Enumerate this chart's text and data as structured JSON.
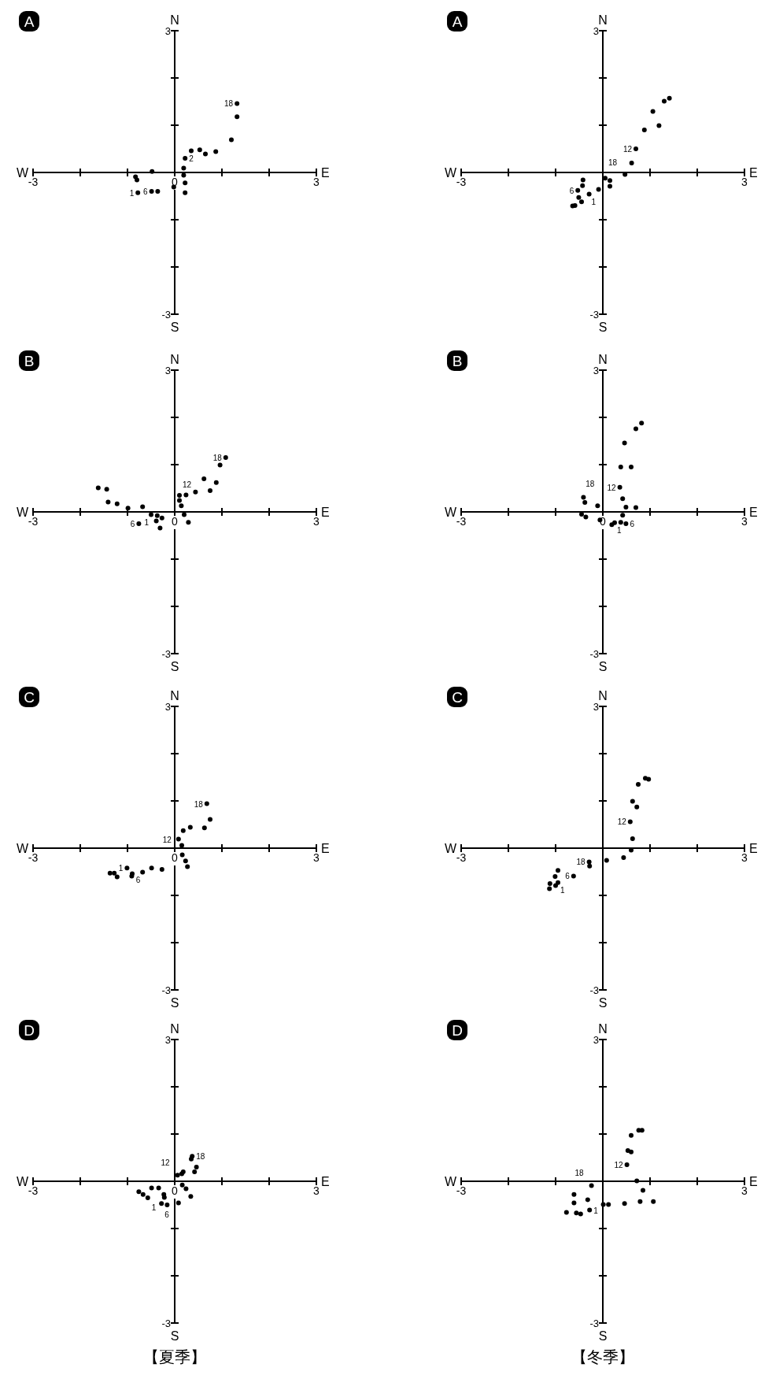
{
  "chart_data": [
    {
      "type": "scatter",
      "title": "A",
      "xlim": [
        -3,
        3
      ],
      "ylim": [
        -3,
        3
      ],
      "color": "#000000",
      "marker": "circle",
      "xticks": [
        {
          "value": -3,
          "label": "-3"
        },
        {
          "value": -2,
          "label": null
        },
        {
          "value": -1,
          "label": null
        },
        {
          "value": 0,
          "label": "0"
        },
        {
          "value": 1,
          "label": null
        },
        {
          "value": 2,
          "label": null
        },
        {
          "value": 3,
          "label": "3"
        }
      ],
      "yticks": [
        {
          "value": -3,
          "label": "-3"
        },
        {
          "value": -2,
          "label": null
        },
        {
          "value": -1,
          "label": null
        },
        {
          "value": 1,
          "label": null
        },
        {
          "value": 2,
          "label": null
        },
        {
          "value": 3,
          "label": "3"
        }
      ],
      "x": [
        1.32,
        1.32,
        1.2,
        0.87,
        0.65,
        0.53,
        0.35,
        0.22,
        0.19,
        0.19,
        0.22,
        0.22,
        -0.02,
        -0.36,
        -0.49,
        -0.78,
        -0.8,
        -0.83,
        -0.48
      ],
      "values": [
        1.46,
        1.18,
        0.69,
        0.44,
        0.39,
        0.48,
        0.46,
        0.3,
        0.09,
        -0.06,
        -0.22,
        -0.43,
        -0.31,
        -0.4,
        -0.4,
        -0.43,
        -0.16,
        -0.09,
        0.02
      ],
      "annotations": [
        "N",
        "S",
        "W",
        "E",
        {
          "text": "18",
          "x": 1.32,
          "y": 1.46
        },
        {
          "text": "2",
          "x": 0.22,
          "y": 0.3
        },
        {
          "text": "6",
          "x": -0.49,
          "y": -0.4
        },
        {
          "text": "1",
          "x": -0.78,
          "y": -0.43
        }
      ]
    },
    {
      "type": "scatter",
      "title": "A",
      "xlim": [
        -3,
        3
      ],
      "ylim": [
        -3,
        3
      ],
      "color": "#000000",
      "marker": "circle",
      "xticks": [
        {
          "value": -3,
          "label": "-3"
        },
        {
          "value": -2,
          "label": null
        },
        {
          "value": -1,
          "label": null
        },
        {
          "value": 1,
          "label": null
        },
        {
          "value": 2,
          "label": null
        },
        {
          "value": 3,
          "label": "3"
        }
      ],
      "yticks": [
        {
          "value": -3,
          "label": "-3"
        },
        {
          "value": -2,
          "label": null
        },
        {
          "value": -1,
          "label": null
        },
        {
          "value": 1,
          "label": null
        },
        {
          "value": 2,
          "label": null
        },
        {
          "value": 3,
          "label": "3"
        }
      ],
      "x": [
        1.41,
        1.3,
        1.06,
        1.19,
        0.88,
        0.7,
        0.61,
        0.47,
        0.15,
        0.15,
        0.05,
        -0.09,
        -0.42,
        -0.43,
        -0.29,
        -0.53,
        -0.51,
        -0.45,
        -0.59,
        -0.64
      ],
      "values": [
        1.57,
        1.51,
        1.29,
        0.99,
        0.9,
        0.5,
        0.2,
        -0.04,
        -0.17,
        -0.29,
        -0.12,
        -0.36,
        -0.16,
        -0.28,
        -0.46,
        -0.38,
        -0.53,
        -0.62,
        -0.7,
        -0.71
      ],
      "annotations": [
        "N",
        "S",
        "W",
        "E",
        {
          "text": "12",
          "x": 0.7,
          "y": 0.5
        },
        {
          "text": "18",
          "x": 0.05,
          "y": -0.12
        },
        {
          "text": "6",
          "x": -0.53,
          "y": -0.38
        },
        {
          "text": "1",
          "x": -0.29,
          "y": -0.46
        }
      ]
    },
    {
      "type": "scatter",
      "title": "B",
      "xlim": [
        -3,
        3
      ],
      "ylim": [
        -3,
        3
      ],
      "color": "#000000",
      "marker": "circle",
      "xticks": [
        {
          "value": -3,
          "label": "-3"
        },
        {
          "value": -2,
          "label": null
        },
        {
          "value": -1,
          "label": null
        },
        {
          "value": 0,
          "label": "0"
        },
        {
          "value": 1,
          "label": null
        },
        {
          "value": 2,
          "label": null
        },
        {
          "value": 3,
          "label": "3"
        }
      ],
      "yticks": [
        {
          "value": -3,
          "label": "-3"
        },
        {
          "value": -2,
          "label": null
        },
        {
          "value": -1,
          "label": null
        },
        {
          "value": 1,
          "label": null
        },
        {
          "value": 2,
          "label": null
        },
        {
          "value": 3,
          "label": "3"
        }
      ],
      "x": [
        1.08,
        0.96,
        0.62,
        0.88,
        0.75,
        0.44,
        0.24,
        0.1,
        0.1,
        0.14,
        0.2,
        0.29,
        -0.31,
        -0.27,
        -0.37,
        -0.39,
        -0.5,
        -0.76,
        -0.68,
        -0.99,
        -1.22,
        -1.41,
        -1.44,
        -1.62
      ],
      "values": [
        1.15,
        0.99,
        0.7,
        0.62,
        0.45,
        0.42,
        0.36,
        0.35,
        0.24,
        0.13,
        -0.06,
        -0.22,
        -0.34,
        -0.13,
        -0.08,
        -0.19,
        -0.06,
        -0.25,
        0.11,
        0.08,
        0.17,
        0.21,
        0.48,
        0.51
      ],
      "annotations": [
        "N",
        "S",
        "W",
        "E",
        {
          "text": "18",
          "x": 1.08,
          "y": 1.15
        },
        {
          "text": "12",
          "x": 0.1,
          "y": 0.35
        },
        {
          "text": "1",
          "x": -0.5,
          "y": -0.06
        },
        {
          "text": "6",
          "x": -0.76,
          "y": -0.25
        }
      ]
    },
    {
      "type": "scatter",
      "title": "B",
      "xlim": [
        -3,
        3
      ],
      "ylim": [
        -3,
        3
      ],
      "color": "#000000",
      "marker": "circle",
      "xticks": [
        {
          "value": -3,
          "label": "-3"
        },
        {
          "value": -2,
          "label": null
        },
        {
          "value": -1,
          "label": null
        },
        {
          "value": 0,
          "label": "0"
        },
        {
          "value": 1,
          "label": null
        },
        {
          "value": 2,
          "label": null
        },
        {
          "value": 3,
          "label": "3"
        }
      ],
      "yticks": [
        {
          "value": -3,
          "label": "-3"
        },
        {
          "value": -2,
          "label": null
        },
        {
          "value": -1,
          "label": null
        },
        {
          "value": 1,
          "label": null
        },
        {
          "value": 2,
          "label": null
        },
        {
          "value": 3,
          "label": "3"
        }
      ],
      "x": [
        0.82,
        0.7,
        0.46,
        0.38,
        0.6,
        0.36,
        0.42,
        0.49,
        0.7,
        0.42,
        0.49,
        0.38,
        0.25,
        0.19,
        -0.06,
        -0.11,
        -0.36,
        -0.45,
        -0.38,
        -0.41
      ],
      "values": [
        1.88,
        1.76,
        1.46,
        0.95,
        0.95,
        0.52,
        0.28,
        0.1,
        0.09,
        -0.07,
        -0.25,
        -0.22,
        -0.23,
        -0.27,
        -0.17,
        0.13,
        -0.11,
        -0.05,
        0.2,
        0.31
      ],
      "annotations": [
        "N",
        "S",
        "W",
        "E",
        {
          "text": "12",
          "x": 0.36,
          "y": 0.52
        },
        {
          "text": "6",
          "x": 0.49,
          "y": -0.25
        },
        {
          "text": "1",
          "x": 0.25,
          "y": -0.23
        },
        {
          "text": "18",
          "x": -0.11,
          "y": 0.13
        }
      ]
    },
    {
      "type": "scatter",
      "title": "C",
      "xlim": [
        -3,
        3
      ],
      "ylim": [
        -3,
        3
      ],
      "color": "#000000",
      "marker": "circle",
      "xticks": [
        {
          "value": -3,
          "label": "-3"
        },
        {
          "value": -2,
          "label": null
        },
        {
          "value": -1,
          "label": null
        },
        {
          "value": 0,
          "label": "0"
        },
        {
          "value": 1,
          "label": null
        },
        {
          "value": 2,
          "label": null
        },
        {
          "value": 3,
          "label": "3"
        }
      ],
      "yticks": [
        {
          "value": -3,
          "label": "-3"
        },
        {
          "value": -2,
          "label": null
        },
        {
          "value": -1,
          "label": null
        },
        {
          "value": 1,
          "label": null
        },
        {
          "value": 2,
          "label": null
        },
        {
          "value": 3,
          "label": "3"
        }
      ],
      "x": [
        0.68,
        0.75,
        0.63,
        0.33,
        0.18,
        0.08,
        0.15,
        0.16,
        0.23,
        0.27,
        -0.27,
        -0.49,
        -0.68,
        -0.91,
        -0.9,
        -1.01,
        -1.22,
        -1.28,
        -1.37
      ],
      "values": [
        0.94,
        0.61,
        0.43,
        0.44,
        0.37,
        0.19,
        0.06,
        -0.14,
        -0.27,
        -0.39,
        -0.45,
        -0.42,
        -0.51,
        -0.59,
        -0.54,
        -0.42,
        -0.61,
        -0.53,
        -0.53
      ],
      "annotations": [
        "N",
        "S",
        "W",
        "E",
        {
          "text": "18",
          "x": 0.68,
          "y": 0.94
        },
        {
          "text": "12",
          "x": 0.08,
          "y": 0.19
        },
        {
          "text": "6",
          "x": -0.68,
          "y": -0.51
        },
        {
          "text": "1",
          "x": -1.01,
          "y": -0.42
        }
      ]
    },
    {
      "type": "scatter",
      "title": "C",
      "xlim": [
        -3,
        3
      ],
      "ylim": [
        -3,
        3
      ],
      "color": "#000000",
      "marker": "circle",
      "xticks": [
        {
          "value": -3,
          "label": "-3"
        },
        {
          "value": -2,
          "label": null
        },
        {
          "value": -1,
          "label": null
        },
        {
          "value": 1,
          "label": null
        },
        {
          "value": 2,
          "label": null
        },
        {
          "value": 3,
          "label": "3"
        }
      ],
      "yticks": [
        {
          "value": -3,
          "label": "-3"
        },
        {
          "value": -2,
          "label": null
        },
        {
          "value": -1,
          "label": null
        },
        {
          "value": 1,
          "label": null
        },
        {
          "value": 2,
          "label": null
        },
        {
          "value": 3,
          "label": "3"
        }
      ],
      "x": [
        0.97,
        0.9,
        0.75,
        0.63,
        0.72,
        0.58,
        0.63,
        0.6,
        0.44,
        0.08,
        -0.29,
        -0.28,
        -0.62,
        -0.95,
        -1.01,
        -0.95,
        -1.0,
        -1.12,
        -1.13
      ],
      "values": [
        1.46,
        1.48,
        1.35,
        0.99,
        0.87,
        0.56,
        0.2,
        -0.04,
        -0.2,
        -0.26,
        -0.29,
        -0.38,
        -0.59,
        -0.47,
        -0.6,
        -0.73,
        -0.79,
        -0.75,
        -0.86
      ],
      "annotations": [
        "N",
        "S",
        "W",
        "E",
        {
          "text": "12",
          "x": 0.58,
          "y": 0.56
        },
        {
          "text": "18",
          "x": -0.29,
          "y": -0.29
        },
        {
          "text": "6",
          "x": -0.62,
          "y": -0.59
        },
        {
          "text": "1",
          "x": -0.95,
          "y": -0.73
        }
      ]
    },
    {
      "type": "scatter",
      "title": "D",
      "xlim": [
        -3,
        3
      ],
      "ylim": [
        -3,
        3
      ],
      "color": "#000000",
      "marker": "circle",
      "xticks": [
        {
          "value": -3,
          "label": "-3"
        },
        {
          "value": -2,
          "label": null
        },
        {
          "value": -1,
          "label": null
        },
        {
          "value": 0,
          "label": "0"
        },
        {
          "value": 1,
          "label": null
        },
        {
          "value": 2,
          "label": null
        },
        {
          "value": 3,
          "label": "3"
        }
      ],
      "yticks": [
        {
          "value": -3,
          "label": "-3"
        },
        {
          "value": -2,
          "label": null
        },
        {
          "value": -1,
          "label": null
        },
        {
          "value": 1,
          "label": null
        },
        {
          "value": 2,
          "label": null
        },
        {
          "value": 3,
          "label": "3"
        }
      ],
      "x": [
        0.37,
        0.35,
        0.46,
        0.42,
        0.18,
        0.15,
        0.06,
        0.16,
        0.24,
        0.34,
        0.08,
        -0.16,
        -0.28,
        -0.22,
        -0.23,
        -0.34,
        -0.49,
        -0.57,
        -0.67,
        -0.76
      ],
      "values": [
        0.53,
        0.47,
        0.3,
        0.2,
        0.2,
        0.16,
        0.13,
        -0.08,
        -0.16,
        -0.32,
        -0.46,
        -0.5,
        -0.47,
        -0.34,
        -0.28,
        -0.14,
        -0.14,
        -0.35,
        -0.28,
        -0.22
      ],
      "annotations": [
        "N",
        "S",
        "W",
        "E",
        "【夏季】",
        {
          "text": "18",
          "x": 0.37,
          "y": 0.53
        },
        {
          "text": "12",
          "x": 0.06,
          "y": 0.13
        },
        {
          "text": "1",
          "x": -0.23,
          "y": -0.28
        },
        {
          "text": "6",
          "x": -0.28,
          "y": -0.47
        }
      ]
    },
    {
      "type": "scatter",
      "title": "D",
      "xlim": [
        -3,
        3
      ],
      "ylim": [
        -3,
        3
      ],
      "color": "#000000",
      "marker": "circle",
      "xticks": [
        {
          "value": -3,
          "label": "-3"
        },
        {
          "value": -2,
          "label": null
        },
        {
          "value": -1,
          "label": null
        },
        {
          "value": 1,
          "label": null
        },
        {
          "value": 2,
          "label": null
        },
        {
          "value": 3,
          "label": "3"
        }
      ],
      "yticks": [
        {
          "value": -3,
          "label": "-3"
        },
        {
          "value": -2,
          "label": null
        },
        {
          "value": -1,
          "label": null
        },
        {
          "value": 1,
          "label": null
        },
        {
          "value": 2,
          "label": null
        },
        {
          "value": 3,
          "label": "3"
        }
      ],
      "x": [
        0.83,
        0.76,
        0.6,
        0.6,
        0.53,
        0.51,
        0.72,
        0.85,
        1.07,
        0.79,
        0.46,
        0.12,
        0.01,
        -0.24,
        -0.61,
        -0.61,
        -0.32,
        -0.28,
        -0.47,
        -0.56,
        -0.77
      ],
      "values": [
        1.08,
        1.08,
        0.97,
        0.62,
        0.65,
        0.35,
        0.01,
        -0.19,
        -0.43,
        -0.43,
        -0.47,
        -0.49,
        -0.49,
        -0.09,
        -0.28,
        -0.46,
        -0.39,
        -0.61,
        -0.69,
        -0.67,
        -0.66
      ],
      "annotations": [
        "N",
        "S",
        "W",
        "E",
        "【冬季】",
        {
          "text": "12",
          "x": 0.51,
          "y": 0.35
        },
        {
          "text": "18",
          "x": -0.24,
          "y": -0.09
        },
        {
          "text": "1",
          "x": -0.28,
          "y": -0.61
        }
      ]
    }
  ]
}
